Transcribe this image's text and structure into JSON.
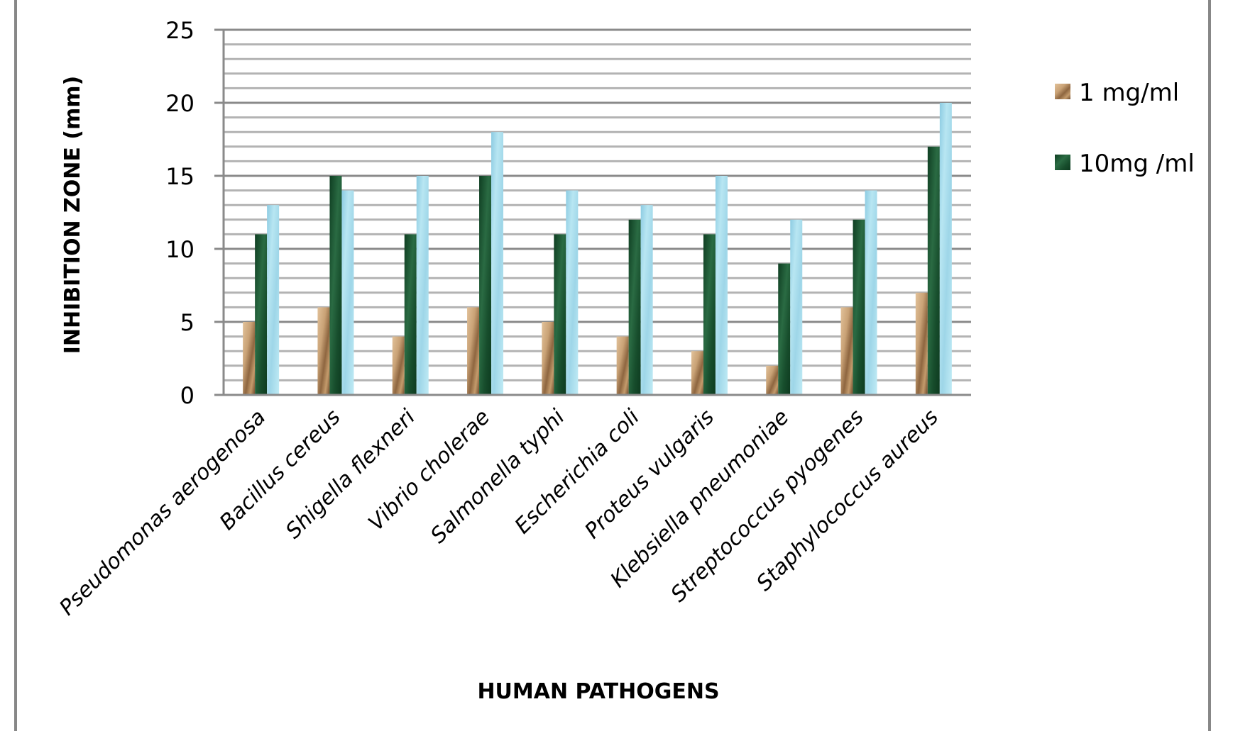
{
  "chart_data": {
    "type": "bar",
    "title": "",
    "xlabel": "HUMAN PATHOGENS",
    "ylabel": "INHIBITION ZONE (mm)",
    "ylim": [
      0,
      25
    ],
    "yticks": [
      0,
      5,
      10,
      15,
      20,
      25
    ],
    "grid": {
      "major_step": 5,
      "minor_step": 1,
      "on": true
    },
    "legend_position": "right",
    "categories": [
      "Pseudomonas aerogenosa",
      "Bacillus cereus",
      "Shigella flexneri",
      "Vibrio cholerae",
      "Salmonella typhi",
      "Escherichia coli",
      "Proteus vulgaris",
      "Klebsiella pneumoniae",
      "Streptococcus pyogenes",
      "Staphylococcus aureus"
    ],
    "series": [
      {
        "name": "1 mg/ml",
        "color": "#c9a276",
        "color_dark": "#7a5533",
        "in_legend": true,
        "values": [
          5,
          6,
          4,
          6,
          5,
          4,
          3,
          2,
          6,
          7
        ]
      },
      {
        "name": "10mg /ml",
        "color": "#1d5b35",
        "color_dark": "#0f3e22",
        "in_legend": true,
        "values": [
          11,
          15,
          11,
          15,
          11,
          12,
          11,
          9,
          12,
          17
        ]
      },
      {
        "name": "",
        "color": "#a9dcea",
        "color_dark": "#7fc3da",
        "in_legend": false,
        "values": [
          13,
          14,
          15,
          18,
          14,
          13,
          15,
          12,
          14,
          20
        ]
      }
    ]
  },
  "legend": {
    "items": [
      {
        "label": "1 mg/ml",
        "color": "#c9a276"
      },
      {
        "label": "10mg /ml",
        "color": "#1d5b35"
      }
    ]
  },
  "axes": {
    "x_title": "HUMAN PATHOGENS",
    "y_title": "INHIBITION ZONE (mm)"
  },
  "colors": {
    "gridline_major": "#8a8a8a",
    "gridline_minor": "#b3b3b3",
    "frame": "#878787"
  }
}
